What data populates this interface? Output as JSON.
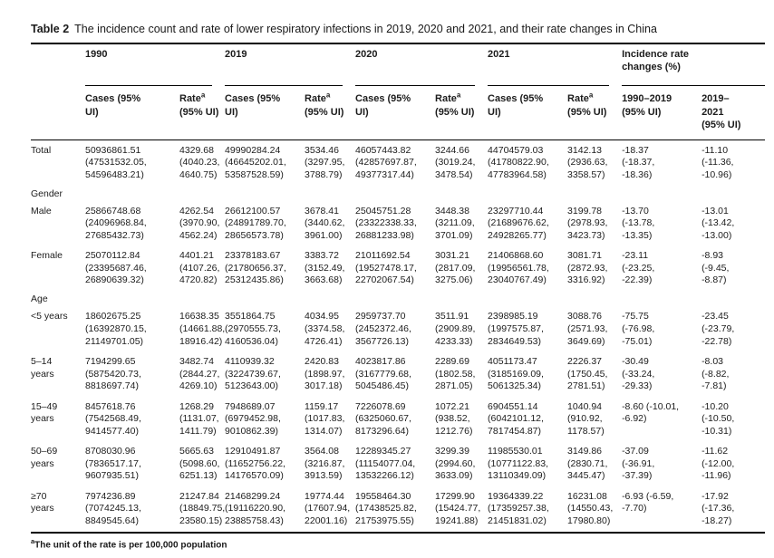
{
  "page": {
    "background": "#ffffff",
    "text_color": "#1c1c1c"
  },
  "title": {
    "prefix": "Table 2",
    "text": "The incidence count and rate of lower respiratory infections in 2019, 2020 and 2021, and their rate changes in China"
  },
  "table": {
    "header": {
      "groups": [
        {
          "label": "1990"
        },
        {
          "label": "2019"
        },
        {
          "label": "2020"
        },
        {
          "label": "2021"
        },
        {
          "label": "Incidence rate\nchanges (%)"
        }
      ],
      "cases_label": "Cases (95%\nUI)",
      "rate_label": "Rate",
      "rate_sup": "a",
      "rate_ui": "(95% UI)",
      "change_cols": [
        "1990–2019\n(95% UI)",
        "2019–\n2021\n(95% UI)"
      ]
    },
    "rows": [
      {
        "label": "Total",
        "cells": [
          [
            "50936861.51",
            "(47531532.05,",
            "54596483.21)"
          ],
          [
            "4329.68",
            "(4040.23,",
            "4640.75)"
          ],
          [
            "49990284.24",
            "(46645202.01,",
            "53587528.59)"
          ],
          [
            "3534.46",
            "(3297.95,",
            "3788.79)"
          ],
          [
            "46057443.82",
            "(42857697.87,",
            "49377317.44)"
          ],
          [
            "3244.66",
            "(3019.24,",
            "3478.54)"
          ],
          [
            "44704579.03",
            "(41780822.90,",
            "47783964.58)"
          ],
          [
            "3142.13",
            "(2936.63,",
            "3358.57)"
          ],
          [
            "-18.37",
            "(-18.37,",
            "-18.36)"
          ],
          [
            "-11.10",
            "(-11.36,",
            "-10.96)"
          ]
        ]
      },
      {
        "label": "Gender",
        "section": true
      },
      {
        "label": "Male",
        "cells": [
          [
            "25866748.68",
            "(24096968.84,",
            "27685432.73)"
          ],
          [
            "4262.54",
            "(3970.90,",
            "4562.24)"
          ],
          [
            "26612100.57",
            "(24891789.70,",
            "28656573.78)"
          ],
          [
            "3678.41",
            "(3440.62,",
            "3961.00)"
          ],
          [
            "25045751.28",
            "(23322338.33,",
            "26881233.98)"
          ],
          [
            "3448.38",
            "(3211.09,",
            "3701.09)"
          ],
          [
            "23297710.44",
            "(21689676.62,",
            "24928265.77)"
          ],
          [
            "3199.78",
            "(2978.93,",
            "3423.73)"
          ],
          [
            "-13.70",
            "(-13.78,",
            "-13.35)"
          ],
          [
            "-13.01",
            "(-13.42,",
            "-13.00)"
          ]
        ]
      },
      {
        "label": "Female",
        "cells": [
          [
            "25070112.84",
            "(23395687.46,",
            "26890639.32)"
          ],
          [
            "4401.21",
            "(4107.26,",
            "4720.82)"
          ],
          [
            "23378183.67",
            "(21780656.37,",
            "25312435.86)"
          ],
          [
            "3383.72",
            "(3152.49,",
            "3663.68)"
          ],
          [
            "21011692.54",
            "(19527478.17,",
            "22702067.54)"
          ],
          [
            "3031.21",
            "(2817.09,",
            "3275.06)"
          ],
          [
            "21406868.60",
            "(19956561.78,",
            "23040767.49)"
          ],
          [
            "3081.71",
            "(2872.93,",
            "3316.92)"
          ],
          [
            "-23.11",
            "(-23.25,",
            "-22.39)"
          ],
          [
            "-8.93",
            "(-9.45,",
            "-8.87)"
          ]
        ]
      },
      {
        "label": "Age",
        "section": true
      },
      {
        "label": "<5 years",
        "cells": [
          [
            "18602675.25",
            "(16392870.15,",
            "21149701.05)"
          ],
          [
            "16638.35",
            "(14661.88,",
            "18916.42)"
          ],
          [
            "3551864.75",
            "(2970555.73,",
            "4160536.04)"
          ],
          [
            "4034.95",
            "(3374.58,",
            "4726.41)"
          ],
          [
            "2959737.70",
            "(2452372.46,",
            "3567726.13)"
          ],
          [
            "3511.91",
            "(2909.89,",
            "4233.33)"
          ],
          [
            "2398985.19",
            "(1997575.87,",
            "2834649.53)"
          ],
          [
            "3088.76",
            "(2571.93,",
            "3649.69)"
          ],
          [
            "-75.75",
            "(-76.98,",
            "-75.01)"
          ],
          [
            "-23.45",
            "(-23.79,",
            "-22.78)"
          ]
        ]
      },
      {
        "label": "5–14\nyears",
        "cells": [
          [
            "7194299.65",
            "(5875420.73,",
            "8818697.74)"
          ],
          [
            "3482.74",
            "(2844.27,",
            "4269.10)"
          ],
          [
            "4110939.32",
            "(3224739.67,",
            "5123643.00)"
          ],
          [
            "2420.83",
            "(1898.97,",
            "3017.18)"
          ],
          [
            "4023817.86",
            "(3167779.68,",
            "5045486.45)"
          ],
          [
            "2289.69",
            "(1802.58,",
            "2871.05)"
          ],
          [
            "4051173.47",
            "(3185169.09,",
            "5061325.34)"
          ],
          [
            "2226.37",
            "(1750.45,",
            "2781.51)"
          ],
          [
            "-30.49",
            "(-33.24,",
            "-29.33)"
          ],
          [
            "-8.03",
            "(-8.82,",
            "-7.81)"
          ]
        ]
      },
      {
        "label": "15–49\nyears",
        "cells": [
          [
            "8457618.76",
            "(7542568.49,",
            "9414577.40)"
          ],
          [
            "1268.29",
            "(1131.07,",
            "1411.79)"
          ],
          [
            "7948689.07",
            "(6979452.98,",
            "9010862.39)"
          ],
          [
            "1159.17",
            "(1017.83,",
            "1314.07)"
          ],
          [
            "7226078.69",
            "(6325060.67,",
            "8173296.64)"
          ],
          [
            "1072.21",
            "(938.52,",
            "1212.76)"
          ],
          [
            "6904551.14",
            "(6042101.12,",
            "7817454.87)"
          ],
          [
            "1040.94",
            "(910.92,",
            "1178.57)"
          ],
          [
            "-8.60 (-10.01,",
            "-6.92)"
          ],
          [
            "-10.20",
            "(-10.50,",
            "-10.31)"
          ]
        ]
      },
      {
        "label": "50–69\nyears",
        "cells": [
          [
            "8708030.96",
            "(7836517.17,",
            "9607935.51)"
          ],
          [
            "5665.63",
            "(5098.60,",
            "6251.13)"
          ],
          [
            "12910491.87",
            "(11652756.22,",
            "14176570.09)"
          ],
          [
            "3564.08",
            "(3216.87,",
            "3913.59)"
          ],
          [
            "12289345.27",
            "(11154077.04,",
            "13532266.12)"
          ],
          [
            "3299.39",
            "(2994.60,",
            "3633.09)"
          ],
          [
            "11985530.01",
            "(10771122.83,",
            "13110349.09)"
          ],
          [
            "3149.86",
            "(2830.71,",
            "3445.47)"
          ],
          [
            "-37.09",
            "(-36.91,",
            "-37.39)"
          ],
          [
            "-11.62",
            "(-12.00,",
            "-11.96)"
          ]
        ]
      },
      {
        "label": "≥70\nyears",
        "cells": [
          [
            "7974236.89",
            "(7074245.13,",
            "8849545.64)"
          ],
          [
            "21247.84",
            "(18849.75,",
            "23580.15)"
          ],
          [
            "21468299.24",
            "(19116220.90,",
            "23885758.43)"
          ],
          [
            "19774.44",
            "(17607.94,",
            "22001.16)"
          ],
          [
            "19558464.30",
            "(17438525.82,",
            "21753975.55)"
          ],
          [
            "17299.90",
            "(15424.77,",
            "19241.88)"
          ],
          [
            "19364339.22",
            "(17359257.38,",
            "21451831.02)"
          ],
          [
            "16231.08",
            "(14550.43,",
            "17980.80)"
          ],
          [
            "-6.93 (-6.59,",
            "-7.70)"
          ],
          [
            "-17.92",
            "(-17.36,",
            "-18.27)"
          ]
        ]
      }
    ]
  },
  "footnote": {
    "sup": "a",
    "text": "The unit of the rate is per 100,000 population"
  }
}
